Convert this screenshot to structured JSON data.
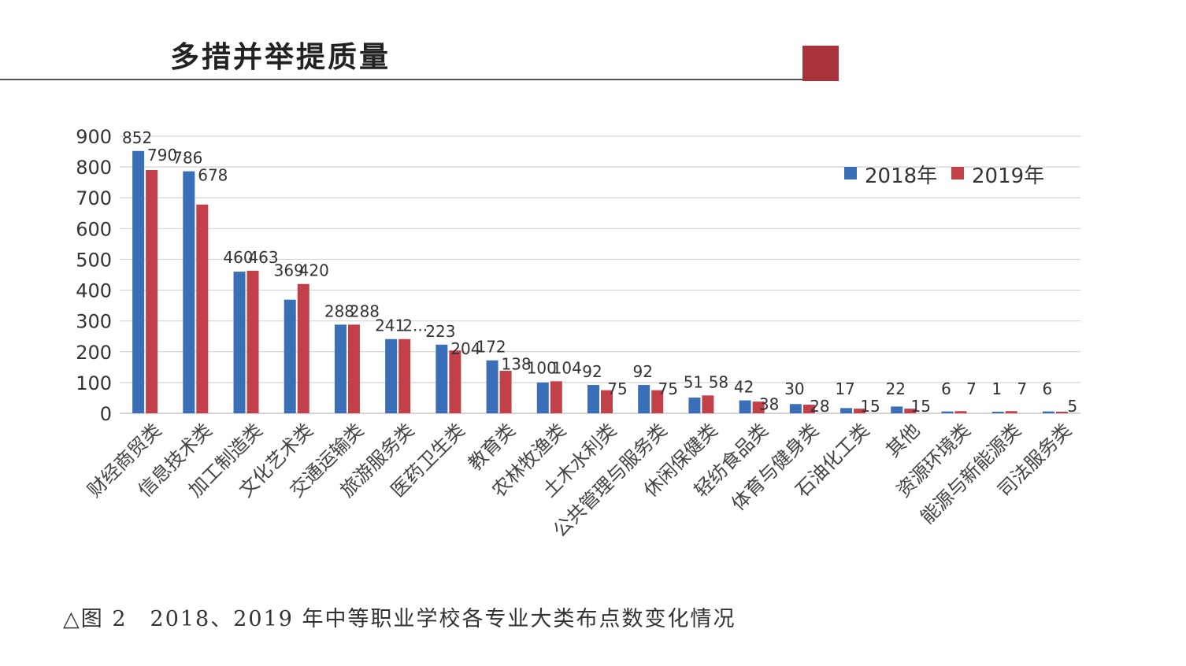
{
  "header": {
    "title": "多措并举提质量",
    "accent_color": "#a8333a"
  },
  "caption": "△图 2　2018、2019 年中等职业学校各专业大类布点数变化情况",
  "chart_data": {
    "type": "bar",
    "categories": [
      "财经商贸类",
      "信息技术类",
      "加工制造类",
      "文化艺术类",
      "交通运输类",
      "旅游服务类",
      "医药卫生类",
      "教育类",
      "农林牧渔类",
      "土木水利类",
      "公共管理与服务类",
      "休闲保健类",
      "轻纺食品类",
      "体育与健身类",
      "石油化工类",
      "其他",
      "资源环境类",
      "能源与新能源类",
      "司法服务类"
    ],
    "series": [
      {
        "name": "2018年",
        "color": "#3a6fb8",
        "values": [
          852,
          786,
          460,
          369,
          288,
          241,
          223,
          172,
          100,
          92,
          92,
          51,
          42,
          30,
          17,
          22,
          6,
          1,
          6
        ]
      },
      {
        "name": "2019年",
        "color": "#c2404a",
        "values": [
          790,
          678,
          463,
          420,
          288,
          241,
          204,
          138,
          104,
          75,
          75,
          58,
          38,
          28,
          15,
          15,
          7,
          7,
          5
        ]
      }
    ],
    "data_labels": [
      [
        "852",
        "790"
      ],
      [
        "786",
        "678"
      ],
      [
        "460",
        "463"
      ],
      [
        "369",
        "420"
      ],
      [
        "288",
        "288"
      ],
      [
        "241",
        "2..."
      ],
      [
        "223",
        "204"
      ],
      [
        "172",
        "138"
      ],
      [
        "100",
        "104"
      ],
      [
        "92",
        "75"
      ],
      [
        "92",
        "75"
      ],
      [
        "51",
        "58"
      ],
      [
        "42",
        "38"
      ],
      [
        "30",
        "28"
      ],
      [
        "17",
        "15"
      ],
      [
        "22",
        "15"
      ],
      [
        "6",
        "7"
      ],
      [
        "1",
        "7"
      ],
      [
        "6",
        "5"
      ]
    ],
    "y_ticks": [
      "900",
      "800",
      "700",
      "600",
      "500",
      "400",
      "300",
      "200",
      "100",
      "0"
    ],
    "ylim": [
      0,
      900
    ],
    "grid": true,
    "legend_position": "top-right"
  }
}
